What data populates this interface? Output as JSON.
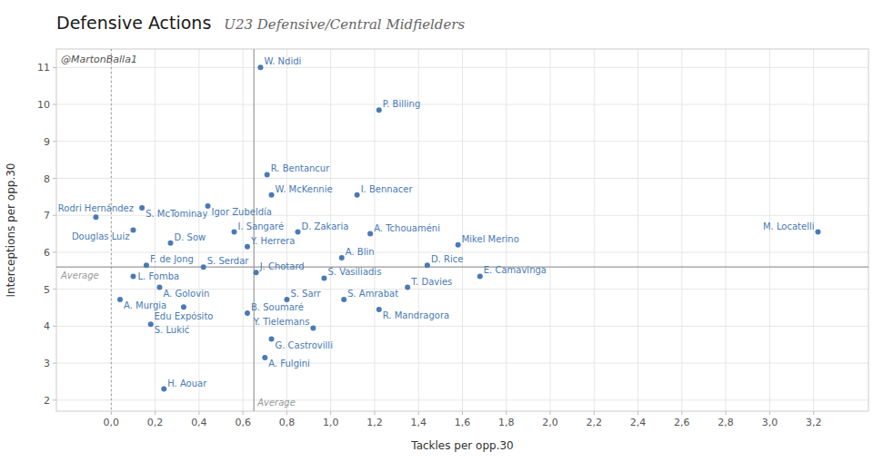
{
  "chart_data": {
    "type": "scatter",
    "title": "Defensive Actions",
    "subtitle": "U23 Defensive/Central Midfielders",
    "xlabel": "Tackles per opp.30",
    "ylabel": "Interceptions per opp.30",
    "xlim": [
      -0.25,
      3.45
    ],
    "ylim": [
      1.7,
      11.5
    ],
    "xticks": [
      {
        "value": 0.0,
        "label": "0,0"
      },
      {
        "value": 0.2,
        "label": "0,2"
      },
      {
        "value": 0.4,
        "label": "0,4"
      },
      {
        "value": 0.6,
        "label": "0,6"
      },
      {
        "value": 0.8,
        "label": "0,8"
      },
      {
        "value": 1.0,
        "label": "1,0"
      },
      {
        "value": 1.2,
        "label": "1,2"
      },
      {
        "value": 1.4,
        "label": "1,4"
      },
      {
        "value": 1.6,
        "label": "1,6"
      },
      {
        "value": 1.8,
        "label": "1,8"
      },
      {
        "value": 2.0,
        "label": "2,0"
      },
      {
        "value": 2.2,
        "label": "2,2"
      },
      {
        "value": 2.4,
        "label": "2,4"
      },
      {
        "value": 2.6,
        "label": "2,6"
      },
      {
        "value": 2.8,
        "label": "2,8"
      },
      {
        "value": 3.0,
        "label": "3,0"
      },
      {
        "value": 3.2,
        "label": "3,2"
      }
    ],
    "yticks": [
      2,
      3,
      4,
      5,
      6,
      7,
      8,
      9,
      10,
      11
    ],
    "grid": true,
    "color": "#4a7ab5",
    "labels": [
      "W. Ndidi",
      "P. Billing",
      "R. Bentancur",
      "W. McKennie",
      "I. Bennacer",
      "S. McTominay",
      "Igor Zubeldía",
      "Rodri Hernández",
      "Douglas Luiz",
      "I. Sangaré",
      "D. Zakaria",
      "A. Tchouaméni",
      "D. Sow",
      "Y. Herrera",
      "Mikel Merino",
      "A. Blin",
      "D. Rice",
      "F. de Jong",
      "S. Serdar",
      "J. Chotard",
      "S. Vasiliadis",
      "L. Fomba",
      "A. Golovin",
      "S. Sarr",
      "S. Amrabat",
      "T. Davies",
      "A. Murgia",
      "Edu Expósito",
      "R. Mandragora",
      "B. Soumaré",
      "Y. Tielemans",
      "S. Lukić",
      "G. Castrovilli",
      "A. Fulgini",
      "H. Aouar",
      "E. Camavinga",
      "M. Locatelli"
    ],
    "x": [
      0.68,
      1.22,
      0.71,
      0.73,
      1.12,
      0.14,
      0.44,
      -0.07,
      0.1,
      0.56,
      0.85,
      1.18,
      0.27,
      0.62,
      1.58,
      1.05,
      1.44,
      0.16,
      0.42,
      0.66,
      0.97,
      0.1,
      0.22,
      0.8,
      1.06,
      1.35,
      0.04,
      0.33,
      1.22,
      0.62,
      0.92,
      0.18,
      0.73,
      0.7,
      0.24,
      1.68,
      3.22
    ],
    "values": [
      11.0,
      9.85,
      8.1,
      7.55,
      7.55,
      7.2,
      7.25,
      6.95,
      6.6,
      6.55,
      6.55,
      6.5,
      6.25,
      6.15,
      6.2,
      5.85,
      5.65,
      5.65,
      5.6,
      5.45,
      5.3,
      5.35,
      5.05,
      4.72,
      4.72,
      5.05,
      4.72,
      4.52,
      4.45,
      4.35,
      3.95,
      4.05,
      3.65,
      3.15,
      2.3,
      5.35,
      6.55
    ],
    "reference_lines": [
      {
        "axis": "x",
        "value": 0.65,
        "label": "Average",
        "color": "#999999",
        "line_style": "solid"
      },
      {
        "axis": "y",
        "value": 5.6,
        "label": "Average",
        "color": "#999999",
        "line_style": "solid"
      },
      {
        "axis": "x",
        "value": 0.0,
        "color": "#999999",
        "line_style": "dotted"
      }
    ],
    "annotations": [
      "@MartonBalla1"
    ]
  }
}
